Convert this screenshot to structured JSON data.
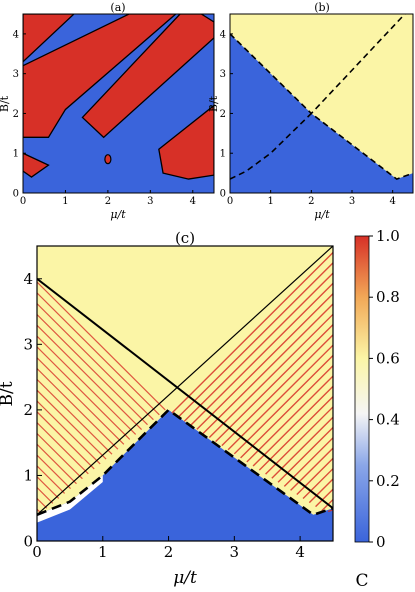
{
  "colors": {
    "blue": "#3a64db",
    "red": "#d73027",
    "yellow": "#fbf5a6",
    "white": "#ffffff",
    "line": "#000000"
  },
  "chart_data": [
    {
      "panel": "(a)",
      "type": "heatmap",
      "xlabel": "μ/t",
      "ylabel": "B/t",
      "xlim": [
        0,
        4.5
      ],
      "ylim": [
        0,
        4.5
      ],
      "x_ticks": [
        0,
        1,
        2,
        3,
        4
      ],
      "y_ticks": [
        0,
        1,
        2,
        3,
        4
      ],
      "regions": [
        {
          "fill": "red",
          "polygon": [
            [
              0.0,
              3.3
            ],
            [
              0.0,
              4.5
            ],
            [
              1.2,
              4.5
            ]
          ]
        },
        {
          "fill": "red",
          "polygon": [
            [
              0.0,
              1.4
            ],
            [
              0.0,
              3.2
            ],
            [
              2.5,
              4.5
            ],
            [
              3.6,
              4.5
            ],
            [
              1.0,
              2.1
            ],
            [
              0.6,
              1.4
            ]
          ]
        },
        {
          "fill": "red",
          "polygon": [
            [
              1.4,
              1.9
            ],
            [
              1.9,
              1.4
            ],
            [
              4.5,
              3.9
            ],
            [
              4.5,
              4.3
            ],
            [
              4.2,
              4.5
            ],
            [
              3.7,
              4.5
            ]
          ]
        },
        {
          "fill": "red",
          "polygon": [
            [
              0.0,
              1.0
            ],
            [
              0.6,
              0.7
            ],
            [
              0.2,
              0.4
            ],
            [
              0.0,
              0.55
            ]
          ]
        },
        {
          "fill": "red",
          "polygon": [
            [
              3.2,
              1.1
            ],
            [
              4.5,
              2.2
            ],
            [
              4.5,
              0.45
            ],
            [
              3.9,
              0.35
            ],
            [
              3.3,
              0.5
            ]
          ]
        }
      ],
      "dots": [
        {
          "x": 2.0,
          "y": 0.85
        }
      ]
    },
    {
      "panel": "(b)",
      "type": "heatmap",
      "xlabel": "μ/t",
      "ylabel": "B/t",
      "xlim": [
        0,
        4.5
      ],
      "ylim": [
        0,
        4.5
      ],
      "x_ticks": [
        0,
        1,
        2,
        3,
        4
      ],
      "y_ticks": [
        0,
        1,
        2,
        3,
        4
      ],
      "regions": [
        {
          "fill": "yellow",
          "polygon": [
            [
              0.0,
              4.5
            ],
            [
              4.5,
              4.5
            ],
            [
              4.5,
              0.5
            ],
            [
              4.1,
              0.35
            ],
            [
              2.0,
              2.0
            ],
            [
              0.0,
              4.0
            ]
          ]
        }
      ],
      "dashed_lines": [
        [
          [
            0.0,
            4.0
          ],
          [
            2.0,
            2.0
          ],
          [
            4.3,
            4.5
          ]
        ],
        [
          [
            0.0,
            0.35
          ],
          [
            0.4,
            0.55
          ],
          [
            1.0,
            1.0
          ],
          [
            2.0,
            2.0
          ],
          [
            4.1,
            0.35
          ],
          [
            4.5,
            0.5
          ]
        ]
      ]
    },
    {
      "panel": "(c)",
      "type": "heatmap",
      "xlabel": "μ/t",
      "ylabel": "B/t",
      "xlim": [
        0,
        4.5
      ],
      "ylim": [
        0,
        4.5
      ],
      "x_ticks": [
        0,
        1,
        2,
        3,
        4
      ],
      "y_ticks": [
        0,
        1,
        2,
        3,
        4
      ],
      "colorbar": {
        "label": "C",
        "range": [
          0,
          1.0
        ],
        "ticks": [
          "0",
          "0.2",
          "0.4",
          "0.6",
          "0.8",
          "1.0"
        ]
      },
      "dashed_lines": [
        [
          [
            0.0,
            0.4
          ],
          [
            0.5,
            0.6
          ],
          [
            1.0,
            1.0
          ],
          [
            2.0,
            2.0
          ],
          [
            4.2,
            0.4
          ],
          [
            4.5,
            0.5
          ]
        ]
      ]
    }
  ]
}
